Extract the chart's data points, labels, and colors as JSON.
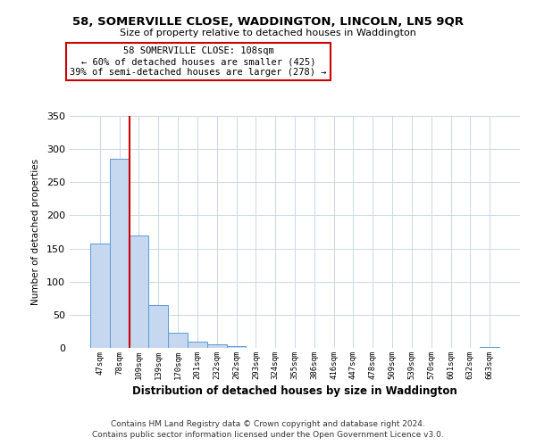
{
  "title": "58, SOMERVILLE CLOSE, WADDINGTON, LINCOLN, LN5 9QR",
  "subtitle": "Size of property relative to detached houses in Waddington",
  "xlabel": "Distribution of detached houses by size in Waddington",
  "ylabel": "Number of detached properties",
  "bar_labels": [
    "47sqm",
    "78sqm",
    "109sqm",
    "139sqm",
    "170sqm",
    "201sqm",
    "232sqm",
    "262sqm",
    "293sqm",
    "324sqm",
    "355sqm",
    "386sqm",
    "416sqm",
    "447sqm",
    "478sqm",
    "509sqm",
    "539sqm",
    "570sqm",
    "601sqm",
    "632sqm",
    "663sqm"
  ],
  "bar_values": [
    157,
    285,
    170,
    65,
    23,
    10,
    6,
    3,
    0,
    0,
    0,
    0,
    0,
    0,
    0,
    0,
    0,
    0,
    0,
    0,
    2
  ],
  "bar_color": "#c5d8f0",
  "bar_edge_color": "#5b9bd5",
  "annotation_title": "58 SOMERVILLE CLOSE: 108sqm",
  "annotation_line1": "← 60% of detached houses are smaller (425)",
  "annotation_line2": "39% of semi-detached houses are larger (278) →",
  "annotation_box_color": "#ffffff",
  "annotation_box_edge": "#cc0000",
  "ylim": [
    0,
    350
  ],
  "yticks": [
    0,
    50,
    100,
    150,
    200,
    250,
    300,
    350
  ],
  "red_line_color": "#cc0000",
  "grid_color": "#c8d8ea",
  "footnote1": "Contains HM Land Registry data © Crown copyright and database right 2024.",
  "footnote2": "Contains public sector information licensed under the Open Government Licence v3.0."
}
